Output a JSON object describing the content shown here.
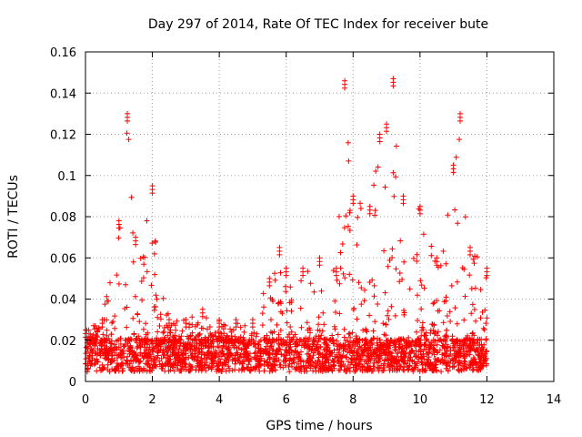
{
  "chart_data": {
    "type": "scatter",
    "title": "Day 297 of 2014, Rate Of TEC Index for receiver bute",
    "xlabel": "GPS time / hours",
    "ylabel": "ROTI / TECUs",
    "xlim": [
      0,
      14
    ],
    "ylim": [
      0,
      0.16
    ],
    "xticks": [
      0,
      2,
      4,
      6,
      8,
      10,
      12,
      14
    ],
    "xtick_labels": [
      "0",
      "2",
      "4",
      "6",
      "8",
      "10",
      "12",
      "14"
    ],
    "yticks": [
      0,
      0.02,
      0.04,
      0.06,
      0.08,
      0.1,
      0.12,
      0.14,
      0.16
    ],
    "ytick_labels": [
      "0",
      "0.02",
      "0.04",
      "0.06",
      "0.08",
      "0.1",
      "0.12",
      "0.14",
      "0.16"
    ],
    "grid": true,
    "marker": "+",
    "color": "#ff0000",
    "series": [
      {
        "name": "ROTI",
        "envelope_x": [
          0.0,
          0.5,
          1.0,
          1.25,
          1.5,
          2.0,
          2.5,
          3.0,
          3.5,
          4.0,
          4.5,
          5.0,
          5.5,
          5.8,
          6.0,
          6.5,
          7.0,
          7.5,
          7.75,
          8.0,
          8.5,
          8.8,
          9.0,
          9.2,
          9.5,
          10.0,
          10.5,
          11.0,
          11.2,
          11.5,
          12.0
        ],
        "envelope_max": [
          0.025,
          0.03,
          0.078,
          0.13,
          0.07,
          0.095,
          0.03,
          0.03,
          0.035,
          0.03,
          0.03,
          0.03,
          0.05,
          0.065,
          0.055,
          0.055,
          0.06,
          0.055,
          0.146,
          0.09,
          0.085,
          0.12,
          0.125,
          0.147,
          0.09,
          0.085,
          0.06,
          0.105,
          0.13,
          0.065,
          0.055
        ],
        "typical_range": [
          0.008,
          0.02
        ]
      }
    ]
  }
}
